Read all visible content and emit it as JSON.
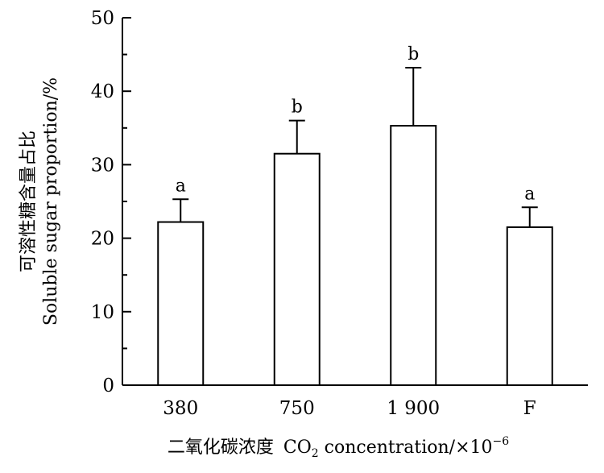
{
  "chart_data": {
    "type": "bar",
    "categories": [
      "380",
      "750",
      "1 900",
      "F"
    ],
    "values": [
      22.2,
      31.5,
      35.3,
      21.5
    ],
    "error_upper": [
      25.3,
      36.0,
      43.2,
      24.2
    ],
    "significance_labels": [
      "a",
      "b",
      "b",
      "a"
    ],
    "ylim": [
      0,
      50
    ],
    "y_major_ticks": [
      0,
      10,
      20,
      30,
      40,
      50
    ],
    "y_minor_step": 5,
    "grid": false,
    "legend": "none",
    "ylabel_zh": "可溶性糖含量占比",
    "ylabel_en": "Soluble sugar proportion/%",
    "xlabel_zh": "二氧化碳浓度",
    "xlabel_en_prefix": "CO",
    "xlabel_en_sub": "2",
    "xlabel_en_suffix": " concentration/×10",
    "xlabel_en_sup": "−6",
    "bar_fill": "#ffffff",
    "bar_stroke": "#000000"
  }
}
